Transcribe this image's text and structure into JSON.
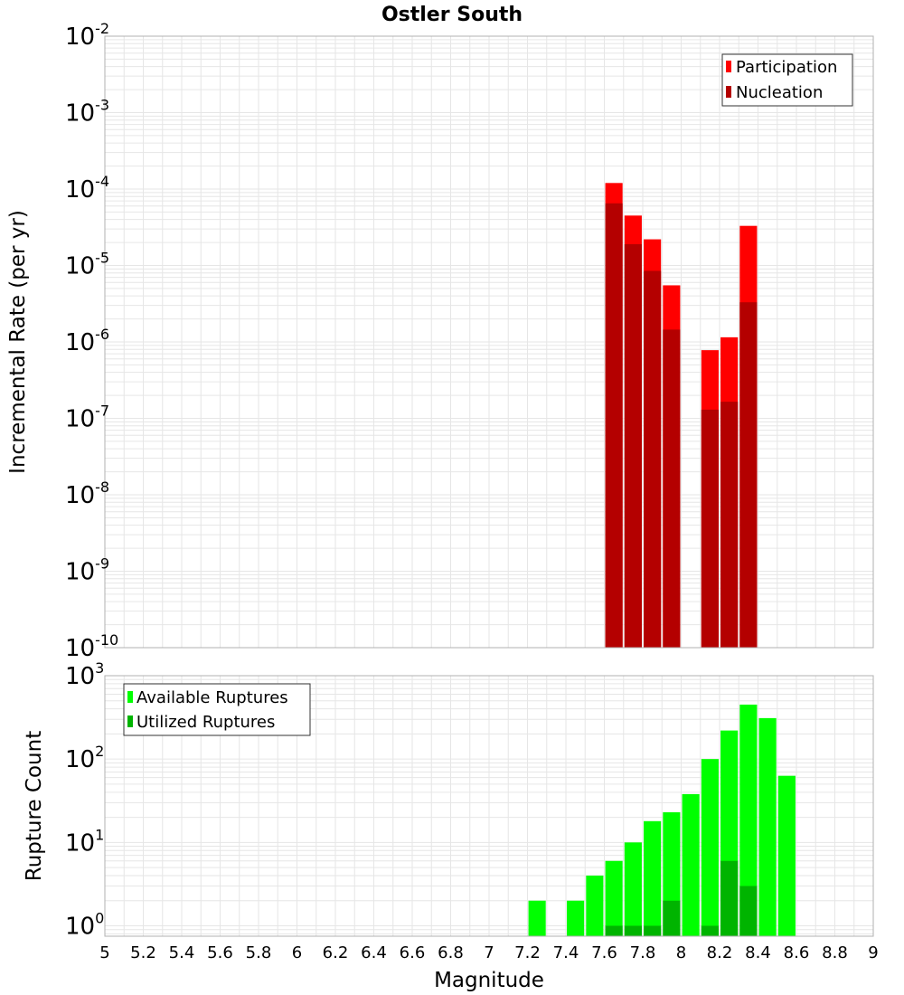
{
  "colors": {
    "participation": "#ff0000",
    "nucleation": "#b40000",
    "available": "#00ff00",
    "utilized": "#00b400",
    "grid": "#e6e6e6",
    "frame": "#b0b0b0"
  },
  "chart_data": [
    {
      "id": "rate",
      "type": "bar",
      "title": "Ostler South",
      "ylabel": "Incremental Rate (per yr)",
      "yscale": "log",
      "ylim_exp": [
        -10,
        -2
      ],
      "y_tick_labels": [
        {
          "base": "10",
          "exp": "-2"
        },
        {
          "base": "10",
          "exp": "-3"
        },
        {
          "base": "10",
          "exp": "-4"
        },
        {
          "base": "10",
          "exp": "-5"
        },
        {
          "base": "10",
          "exp": "-6"
        },
        {
          "base": "10",
          "exp": "-7"
        },
        {
          "base": "10",
          "exp": "-8"
        },
        {
          "base": "10",
          "exp": "-9"
        },
        {
          "base": "10",
          "exp": "-10"
        }
      ],
      "legend": [
        "Participation",
        "Nucleation"
      ],
      "legend_position": "top-right",
      "series": [
        {
          "name": "Participation",
          "x": [
            7.65,
            7.75,
            7.85,
            7.95,
            8.15,
            8.25,
            8.35
          ],
          "values": [
            0.00012,
            4.5e-05,
            2.2e-05,
            5.5e-06,
            7.8e-07,
            1.15e-06,
            3.3e-05
          ]
        },
        {
          "name": "Nucleation",
          "x": [
            7.65,
            7.75,
            7.85,
            7.95,
            8.15,
            8.25,
            8.35
          ],
          "values": [
            6.5e-05,
            1.9e-05,
            8.5e-06,
            1.45e-06,
            1.3e-07,
            1.65e-07,
            3.3e-06
          ]
        }
      ]
    },
    {
      "id": "count",
      "type": "bar",
      "xlabel": "Magnitude",
      "ylabel": "Rupture Count",
      "yscale": "log",
      "ylim": [
        0.75,
        1000
      ],
      "y_tick_labels": [
        {
          "base": "10",
          "exp": "3"
        },
        {
          "base": "10",
          "exp": "2"
        },
        {
          "base": "10",
          "exp": "1"
        },
        {
          "base": "10",
          "exp": "0"
        }
      ],
      "xlim": [
        5,
        9
      ],
      "x_ticks": [
        "5",
        "5.2",
        "5.4",
        "5.6",
        "5.8",
        "6",
        "6.2",
        "6.4",
        "6.6",
        "6.8",
        "7",
        "7.2",
        "7.4",
        "7.6",
        "7.8",
        "8",
        "8.2",
        "8.4",
        "8.6",
        "8.8",
        "9"
      ],
      "legend": [
        "Available Ruptures",
        "Utilized Ruptures"
      ],
      "legend_position": "top-left",
      "series": [
        {
          "name": "Available Ruptures",
          "x": [
            7.25,
            7.45,
            7.55,
            7.65,
            7.75,
            7.85,
            7.95,
            8.05,
            8.15,
            8.25,
            8.35,
            8.45,
            8.55
          ],
          "values": [
            2,
            2,
            4,
            6,
            10,
            18,
            23,
            38,
            100,
            220,
            450,
            310,
            63
          ]
        },
        {
          "name": "Utilized Ruptures",
          "x": [
            7.65,
            7.75,
            7.85,
            7.95,
            8.15,
            8.25,
            8.35
          ],
          "values": [
            1,
            1,
            1,
            2,
            1,
            6,
            3
          ]
        }
      ]
    }
  ]
}
